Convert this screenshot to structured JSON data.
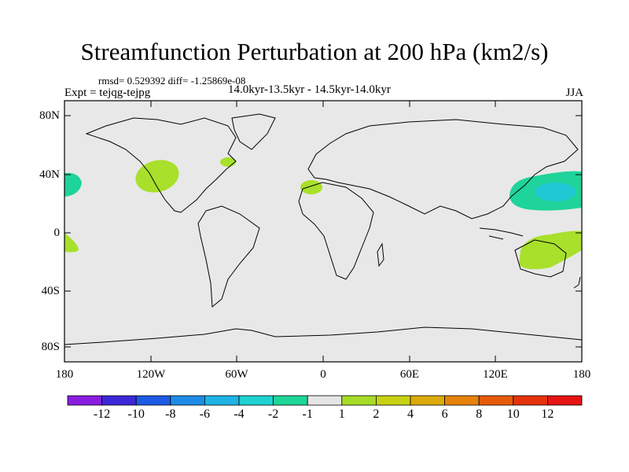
{
  "title": "Streamfunction Perturbation at 200 hPa (km2/s)",
  "stats": "rmsd= 0.529392 diff= -1.25869e-08",
  "experiment": "Expt = tejqg-tejpg",
  "period": "14.0kyr-13.5kyr - 14.5kyr-14.0kyr",
  "season": "JJA",
  "map": {
    "type": "heatmap",
    "projection": "cylindrical equidistant",
    "lon_range": [
      -180,
      180
    ],
    "lat_range": [
      -90,
      90
    ],
    "background_color": "#e8e8e8",
    "y_ticks": [
      "80N",
      "40N",
      "0",
      "40S",
      "80S"
    ],
    "x_ticks": [
      "180",
      "120W",
      "60W",
      "0",
      "60E",
      "120E",
      "180"
    ],
    "anomalies": [
      {
        "region": "eastern North Pacific / western North America",
        "level": "1 to 2",
        "color": "#a8e02c"
      },
      {
        "region": "northeastern North America",
        "level": "1 to 2",
        "color": "#a8e02c"
      },
      {
        "region": "northwest Africa",
        "level": "1 to 2",
        "color": "#a8e02c"
      },
      {
        "region": "tropical eastern Pacific (south)",
        "level": "1 to 2",
        "color": "#a8e02c"
      },
      {
        "region": "Australia / western South Pacific",
        "level": "1 to 2",
        "color": "#a8e02c"
      },
      {
        "region": "central North Pacific (west of dateline wrap)",
        "level": "-2 to -1",
        "color": "#1ed49a"
      },
      {
        "region": "western North Pacific",
        "level": "-2 to -1",
        "color": "#1ed49a"
      },
      {
        "region": "western North Pacific core",
        "level": "-4 to -2",
        "color": "#1ec8d4"
      }
    ]
  },
  "colorbar": {
    "labels": [
      "-12",
      "-10",
      "-8",
      "-6",
      "-4",
      "-2",
      "-1",
      "1",
      "2",
      "4",
      "6",
      "8",
      "10",
      "12"
    ],
    "colors": [
      "#8a1ee0",
      "#3c28d8",
      "#1e5ae6",
      "#1e8ce6",
      "#1eb4e6",
      "#1ed2d2",
      "#1ed696",
      "#e6e6e6",
      "#a6dc28",
      "#c8d214",
      "#dcaa0a",
      "#e6820a",
      "#e65a0a",
      "#e6320a",
      "#e61414"
    ]
  }
}
